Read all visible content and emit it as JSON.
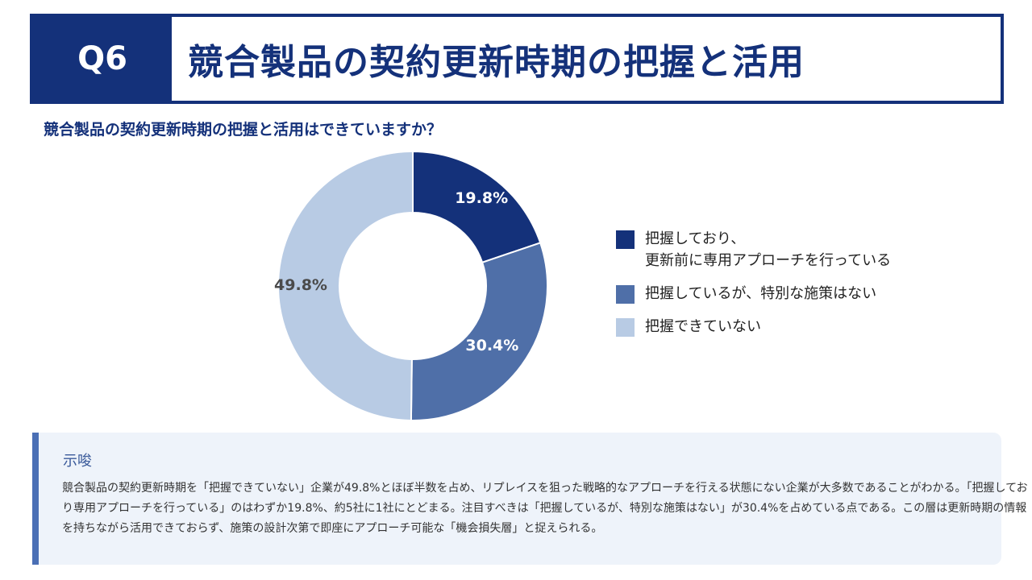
{
  "header": {
    "number": "Q6",
    "title": "競合製品の契約更新時期の把握と活用"
  },
  "question": "競合製品の契約更新時期の把握と活用はできていますか？",
  "chart_data": {
    "type": "pie",
    "style": "donut",
    "title": "競合製品の契約更新時期の把握と活用はできていますか？",
    "categories": [
      "把握しており、\n更新前に専用アプローチを行っている",
      "把握しているが、特別な施策はない",
      "把握できていない"
    ],
    "values": [
      19.8,
      30.4,
      49.8
    ],
    "data_labels": [
      "19.8%",
      "30.4%",
      "49.8%"
    ],
    "colors": [
      "#14317a",
      "#4f6fa8",
      "#b8cbe4"
    ],
    "label_colors": [
      "#ffffff",
      "#ffffff",
      "#4a4a4a"
    ],
    "legend_position": "right"
  },
  "insight": {
    "heading": "示唆",
    "body": "競合製品の契約更新時期を「把握できていない」企業が49.8%とほぼ半数を占め、リプレイスを狙った戦略的なアプローチを行える状態にない企業が大多数であることがわかる。「把握しており専用アプローチを行っている」のはわずか19.8%、約5社に1社にとどまる。注目すべきは「把握しているが、特別な施策はない」が30.4%を占めている点である。この層は更新時期の情報を持ちながら活用できておらず、施策の設計次第で即座にアプローチ可能な「機会損失層」と捉えられる。"
  }
}
